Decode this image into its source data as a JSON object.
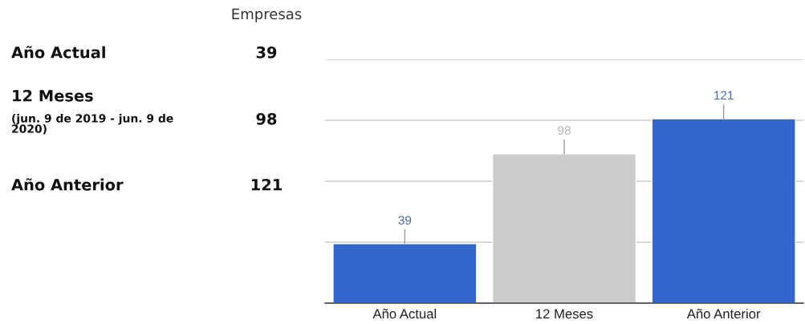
{
  "chart_data": [
    {
      "type": "other",
      "title": "Empresas",
      "categories": [
        "Año Actual",
        "12 Meses",
        "Año Anterior"
      ],
      "values": [
        39,
        98,
        121
      ],
      "data_labels": true,
      "annotations": [
        {
          "text": "(jun. 9 de 2019 - jun. 9 de 2020)",
          "x": "12 Meses"
        }
      ]
    },
    {
      "type": "bar",
      "categories": [
        "Año Actual",
        "12 Meses",
        "Año Anterior"
      ],
      "values": [
        39,
        98,
        121
      ],
      "colors": [
        "#3366cc",
        "#cccccc",
        "#3366cc"
      ],
      "ylim": [
        0,
        160
      ],
      "yticks": [
        {
          "value": 0,
          "label": null
        },
        {
          "value": 40,
          "label": null
        },
        {
          "value": 80,
          "label": null
        },
        {
          "value": 120,
          "label": null
        },
        {
          "value": 160,
          "label": null
        }
      ],
      "grid": "y",
      "tick_labels": "x",
      "data_labels": true
    }
  ]
}
